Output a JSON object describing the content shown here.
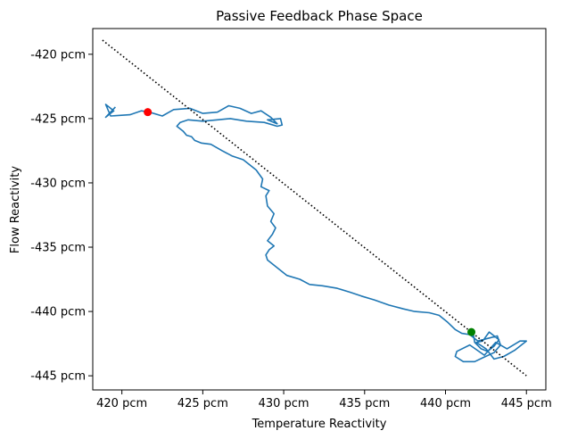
{
  "chart_data": {
    "type": "line",
    "title": "Passive Feedback Phase Space",
    "xlabel": "Temperature Reactivity",
    "ylabel": "Flow Reactivity",
    "xlim": [
      418.2,
      446.2
    ],
    "ylim": [
      -446.1,
      -418.0
    ],
    "grid": false,
    "x_ticks": [
      {
        "value": 420,
        "label": "420 pcm"
      },
      {
        "value": 425,
        "label": "425 pcm"
      },
      {
        "value": 430,
        "label": "430 pcm"
      },
      {
        "value": 435,
        "label": "435 pcm"
      },
      {
        "value": 440,
        "label": "440 pcm"
      },
      {
        "value": 445,
        "label": "445 pcm"
      }
    ],
    "y_ticks": [
      {
        "value": -420,
        "label": "-420 pcm"
      },
      {
        "value": -425,
        "label": "-425 pcm"
      },
      {
        "value": -430,
        "label": "-430 pcm"
      },
      {
        "value": -435,
        "label": "-435 pcm"
      },
      {
        "value": -440,
        "label": "-440 pcm"
      },
      {
        "value": -445,
        "label": "-445 pcm"
      }
    ],
    "series": [
      {
        "style": "solid",
        "color": "#1f77b4",
        "x": [
          419.6,
          419.0,
          419.5,
          419.0,
          419.3,
          420.5,
          421.2,
          421.7,
          422.5,
          423.2,
          424.2,
          425.0,
          425.9,
          426.6,
          427.3,
          428.0,
          428.6,
          429.2,
          429.6,
          429.0,
          429.8,
          429.9,
          429.6,
          428.8,
          427.7,
          426.7,
          425.9,
          425.0,
          424.1,
          423.6,
          423.4,
          423.8,
          424.0,
          424.3,
          424.5,
          424.9,
          425.5,
          426.2,
          426.8,
          427.5,
          427.9,
          428.3,
          428.7,
          428.6,
          429.1,
          428.9,
          429.0,
          429.4,
          429.2,
          429.5,
          429.3,
          429.0,
          429.4,
          429.1,
          428.9,
          429.0,
          429.5,
          430.2,
          431.0,
          431.6,
          432.4,
          433.3,
          434.1,
          434.8,
          435.6,
          436.5,
          437.4,
          438.1,
          439.0,
          439.6,
          440.1,
          440.6,
          441.0,
          441.5,
          442.0,
          442.6,
          443.2,
          443.4,
          443.0,
          442.3,
          441.8,
          441.1,
          440.6,
          440.7,
          441.5,
          442.4,
          443.1,
          443.8,
          444.6,
          445.0,
          444.3,
          443.6,
          443.0,
          442.5,
          441.9,
          442.3,
          442.7,
          443.3,
          443.0,
          442.6,
          442.2,
          441.8,
          441.7
        ],
        "y": [
          -424.1,
          -424.9,
          -424.4,
          -423.9,
          -424.8,
          -424.7,
          -424.4,
          -424.5,
          -424.8,
          -424.3,
          -424.2,
          -424.6,
          -424.5,
          -424.0,
          -424.2,
          -424.6,
          -424.4,
          -424.9,
          -425.4,
          -425.1,
          -425.0,
          -425.5,
          -425.6,
          -425.3,
          -425.2,
          -425.0,
          -425.1,
          -425.2,
          -425.1,
          -425.3,
          -425.6,
          -426.0,
          -426.3,
          -426.4,
          -426.7,
          -426.9,
          -427.0,
          -427.5,
          -427.9,
          -428.2,
          -428.6,
          -429.0,
          -429.7,
          -430.3,
          -430.6,
          -431.0,
          -431.8,
          -432.4,
          -433.0,
          -433.5,
          -434.0,
          -434.5,
          -434.9,
          -435.2,
          -435.6,
          -436.0,
          -436.5,
          -437.2,
          -437.5,
          -437.9,
          -438.0,
          -438.2,
          -438.5,
          -438.8,
          -439.1,
          -439.5,
          -439.8,
          -440.0,
          -440.1,
          -440.3,
          -440.8,
          -441.4,
          -441.7,
          -441.8,
          -442.3,
          -442.1,
          -441.9,
          -442.6,
          -443.2,
          -443.6,
          -443.9,
          -443.9,
          -443.5,
          -443.1,
          -442.6,
          -443.4,
          -442.4,
          -442.9,
          -442.3,
          -442.3,
          -443.0,
          -443.5,
          -443.7,
          -442.9,
          -442.4,
          -442.3,
          -441.6,
          -442.2,
          -442.7,
          -443.1,
          -442.9,
          -442.4,
          -441.6
        ]
      },
      {
        "style": "dotted",
        "color": "#000000",
        "x": [
          418.8,
          445.0
        ],
        "y": [
          -418.9,
          -445.0
        ]
      },
      {
        "style": "marker",
        "color": "#ff0000",
        "x": [
          421.6
        ],
        "y": [
          -424.5
        ]
      },
      {
        "style": "marker",
        "color": "#008000",
        "x": [
          441.6
        ],
        "y": [
          -441.6
        ]
      }
    ]
  }
}
